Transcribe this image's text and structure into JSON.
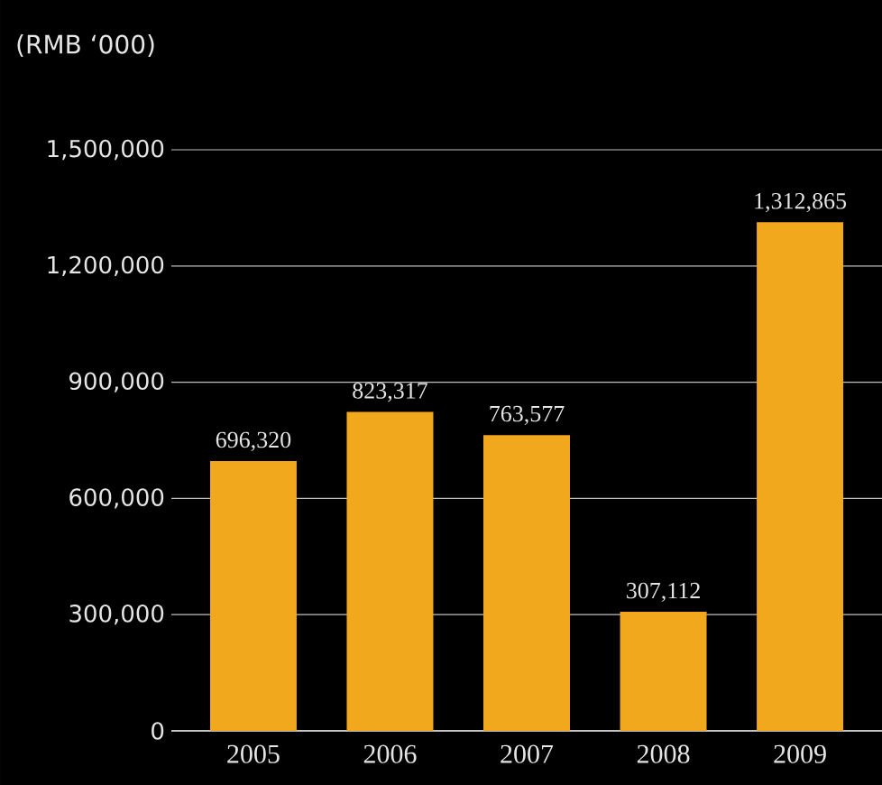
{
  "chart_data": {
    "type": "bar",
    "ylabel": "(RMB ‘000)",
    "categories": [
      "2005",
      "2006",
      "2007",
      "2008",
      "2009"
    ],
    "values": [
      696320,
      823317,
      763577,
      307112,
      1312865
    ],
    "value_labels": [
      "696,320",
      "823,317",
      "763,577",
      "307,112",
      "1,312,865"
    ],
    "color": "#f2a81d",
    "ylim": [
      0,
      1500000
    ],
    "yticks": [
      {
        "value": 0,
        "label": "0"
      },
      {
        "value": 300000,
        "label": "300,000"
      },
      {
        "value": 600000,
        "label": "600,000"
      },
      {
        "value": 900000,
        "label": "900,000"
      },
      {
        "value": 1200000,
        "label": "1,200,000"
      },
      {
        "value": 1500000,
        "label": "1,500,000"
      }
    ],
    "grid": "y"
  }
}
